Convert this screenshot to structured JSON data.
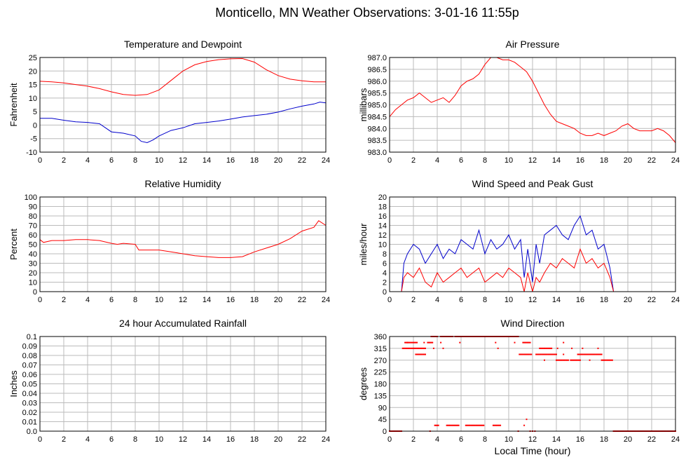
{
  "title": "Monticello, MN Weather Observations: 3-01-16 11:55p",
  "bottom_xlabel": "Local Time (hour)",
  "colors": {
    "red": "#ff0000",
    "blue": "#0000cc",
    "grid": "#bbbbbb",
    "frame": "#000000"
  },
  "chart_data": [
    {
      "id": "temp",
      "type": "line",
      "title": "Temperature and Dewpoint",
      "ylabel": "Fahrenheit",
      "xlim": [
        0,
        24
      ],
      "ylim": [
        -10,
        25
      ],
      "yticks": [
        "-10",
        "-5",
        "0",
        "5",
        "10",
        "15",
        "20",
        "25"
      ],
      "xticks": [
        "0",
        "2",
        "4",
        "6",
        "8",
        "10",
        "12",
        "14",
        "16",
        "18",
        "20",
        "22",
        "24"
      ],
      "series": [
        {
          "color": "#ff0000",
          "x": [
            0,
            1,
            2,
            3,
            4,
            5,
            6,
            7,
            8,
            9,
            10,
            11,
            12,
            13,
            14,
            15,
            16,
            17,
            18,
            19,
            20,
            21,
            22,
            23,
            24
          ],
          "y": [
            16.2,
            16,
            15.6,
            15,
            14.4,
            13.5,
            12.3,
            11.3,
            11,
            11.3,
            13,
            16.5,
            20,
            22.3,
            23.5,
            24.2,
            24.5,
            24.6,
            23.3,
            20.5,
            18.3,
            17,
            16.4,
            16,
            16
          ]
        },
        {
          "color": "#0000cc",
          "x": [
            0,
            1,
            2,
            3,
            4,
            5,
            6,
            7,
            8,
            8.5,
            9,
            9.5,
            10,
            11,
            12,
            13,
            14,
            15,
            16,
            17,
            18,
            19,
            20,
            21,
            22,
            23,
            23.5,
            24
          ],
          "y": [
            2.5,
            2.5,
            1.8,
            1.2,
            1,
            0.5,
            -2.5,
            -3,
            -4,
            -6,
            -6.5,
            -5.5,
            -4,
            -2,
            -1,
            0.5,
            1,
            1.5,
            2.2,
            3,
            3.5,
            4,
            4.8,
            6,
            7,
            7.8,
            8.5,
            8.2
          ]
        }
      ]
    },
    {
      "id": "press",
      "type": "line",
      "title": "Air Pressure",
      "ylabel": "millibars",
      "xlim": [
        0,
        24
      ],
      "ylim": [
        983.0,
        987.0
      ],
      "yticks": [
        "983.0",
        "983.5",
        "984.0",
        "984.5",
        "985.0",
        "985.5",
        "986.0",
        "986.5",
        "987.0"
      ],
      "xticks": [
        "0",
        "2",
        "4",
        "6",
        "8",
        "10",
        "12",
        "14",
        "16",
        "18",
        "20",
        "22",
        "24"
      ],
      "series": [
        {
          "color": "#ff0000",
          "x": [
            0,
            0.5,
            1,
            1.5,
            2,
            2.5,
            3,
            3.5,
            4,
            4.5,
            5,
            5.5,
            6,
            6.5,
            7,
            7.5,
            8,
            8.5,
            9,
            9.5,
            10,
            10.5,
            11,
            11.5,
            12,
            12.5,
            13,
            13.5,
            14,
            14.5,
            15,
            15.5,
            16,
            16.5,
            17,
            17.5,
            18,
            18.5,
            19,
            19.5,
            20,
            20.5,
            21,
            21.5,
            22,
            22.5,
            23,
            23.5,
            24
          ],
          "y": [
            984.5,
            984.8,
            985.0,
            985.2,
            985.3,
            985.5,
            985.3,
            985.1,
            985.2,
            985.3,
            985.1,
            985.4,
            985.8,
            986.0,
            986.1,
            986.3,
            986.7,
            987.0,
            987.0,
            986.9,
            986.9,
            986.8,
            986.6,
            986.4,
            986.0,
            985.5,
            985.0,
            984.6,
            984.3,
            984.2,
            984.1,
            984.0,
            983.8,
            983.7,
            983.7,
            983.8,
            983.7,
            983.8,
            983.9,
            984.1,
            984.2,
            984.0,
            983.9,
            983.9,
            983.9,
            984.0,
            983.9,
            983.7,
            983.4
          ]
        }
      ]
    },
    {
      "id": "rh",
      "type": "line",
      "title": "Relative Humidity",
      "ylabel": "Percent",
      "xlim": [
        0,
        24
      ],
      "ylim": [
        0,
        100
      ],
      "yticks": [
        "0",
        "10",
        "20",
        "30",
        "40",
        "50",
        "60",
        "70",
        "80",
        "90",
        "100"
      ],
      "xticks": [
        "0",
        "2",
        "4",
        "6",
        "8",
        "10",
        "12",
        "14",
        "16",
        "18",
        "20",
        "22",
        "24"
      ],
      "series": [
        {
          "color": "#ff0000",
          "x": [
            0,
            0.3,
            1,
            2,
            3,
            4,
            5,
            6,
            6.5,
            7,
            8,
            8.3,
            9,
            10,
            11,
            12,
            13,
            14,
            15,
            16,
            17,
            18,
            19,
            20,
            21,
            22,
            23,
            23.4,
            24
          ],
          "y": [
            55,
            52,
            54,
            54,
            55,
            55,
            54,
            51,
            50,
            51,
            50,
            44,
            44,
            44,
            42,
            40,
            38,
            37,
            36,
            36,
            37,
            42,
            46,
            50,
            56,
            64,
            68,
            75,
            70
          ]
        }
      ]
    },
    {
      "id": "wind",
      "type": "line",
      "title": "Wind Speed and Peak Gust",
      "ylabel": "miles/hour",
      "xlim": [
        0,
        24
      ],
      "ylim": [
        0,
        20
      ],
      "yticks": [
        "0",
        "2",
        "4",
        "6",
        "8",
        "10",
        "12",
        "14",
        "16",
        "18",
        "20"
      ],
      "xticks": [
        "0",
        "2",
        "4",
        "6",
        "8",
        "10",
        "12",
        "14",
        "16",
        "18",
        "20",
        "22",
        "24"
      ],
      "series": [
        {
          "color": "#0000cc",
          "x": [
            0,
            1,
            1.2,
            1.5,
            2,
            2.5,
            3,
            3.5,
            4,
            4.5,
            5,
            5.5,
            6,
            6.5,
            7,
            7.5,
            8,
            8.5,
            9,
            9.5,
            10,
            10.5,
            11,
            11.3,
            11.6,
            12,
            12.3,
            12.6,
            13,
            13.5,
            14,
            14.5,
            15,
            15.5,
            16,
            16.5,
            17,
            17.5,
            18,
            18.5,
            18.8,
            19,
            24
          ],
          "y": [
            0,
            0,
            6,
            8,
            10,
            9,
            6,
            8,
            10,
            7,
            9,
            8,
            11,
            10,
            9,
            13,
            8,
            11,
            9,
            10,
            12,
            9,
            11,
            3,
            9,
            2,
            10,
            6,
            12,
            13,
            14,
            12,
            11,
            14,
            16,
            12,
            13,
            9,
            10,
            5,
            0,
            0,
            0
          ]
        },
        {
          "color": "#ff0000",
          "x": [
            0,
            1,
            1.2,
            1.5,
            2,
            2.5,
            3,
            3.5,
            4,
            4.5,
            5,
            5.5,
            6,
            6.5,
            7,
            7.5,
            8,
            8.5,
            9,
            9.5,
            10,
            10.5,
            11,
            11.3,
            11.6,
            12,
            12.3,
            12.6,
            13,
            13.5,
            14,
            14.5,
            15,
            15.5,
            16,
            16.5,
            17,
            17.5,
            18,
            18.5,
            18.8,
            19,
            24
          ],
          "y": [
            0,
            0,
            3,
            4,
            3,
            5,
            2,
            1,
            4,
            2,
            3,
            4,
            5,
            3,
            4,
            5,
            2,
            3,
            4,
            3,
            5,
            4,
            3,
            0,
            4,
            0,
            3,
            2,
            4,
            6,
            5,
            7,
            6,
            5,
            9,
            6,
            7,
            5,
            6,
            3,
            0,
            0,
            0
          ]
        }
      ]
    },
    {
      "id": "rain",
      "type": "line",
      "title": "24 hour Accumulated Rainfall",
      "ylabel": "Inches",
      "xlim": [
        0,
        24
      ],
      "ylim": [
        0,
        0.1
      ],
      "yticks": [
        "0.0",
        "0.01",
        "0.02",
        "0.03",
        "0.04",
        "0.05",
        "0.06",
        "0.07",
        "0.08",
        "0.09",
        "0.1"
      ],
      "xticks": [
        "0",
        "2",
        "4",
        "6",
        "8",
        "10",
        "12",
        "14",
        "16",
        "18",
        "20",
        "22",
        "24"
      ],
      "series": [
        {
          "color": "#ff0000",
          "x": [
            0,
            24
          ],
          "y": [
            0,
            0
          ]
        }
      ]
    },
    {
      "id": "dir",
      "type": "scatter",
      "title": "Wind Direction",
      "ylabel": "degrees",
      "xlim": [
        0,
        24
      ],
      "ylim": [
        0,
        360
      ],
      "yticks": [
        "0",
        "45",
        "90",
        "135",
        "180",
        "225",
        "270",
        "315",
        "360"
      ],
      "xticks": [
        "0",
        "2",
        "4",
        "6",
        "8",
        "10",
        "12",
        "14",
        "16",
        "18",
        "20",
        "22",
        "24"
      ],
      "series": [
        {
          "color": "#ff0000",
          "segments": [
            {
              "x0": 0.0,
              "x1": 1.0,
              "y": 0
            },
            {
              "x0": 1.1,
              "x1": 3.0,
              "y": 315
            },
            {
              "x0": 1.3,
              "x1": 2.3,
              "y": 337
            },
            {
              "x0": 2.2,
              "x1": 3.0,
              "y": 292
            },
            {
              "x0": 3.2,
              "x1": 3.6,
              "y": 337
            },
            {
              "x0": 3.5,
              "x1": 4.0,
              "y": 360
            },
            {
              "x0": 4.3,
              "x1": 5.3,
              "y": 360
            },
            {
              "x0": 5.5,
              "x1": 8.2,
              "y": 360
            },
            {
              "x0": 8.3,
              "x1": 10.8,
              "y": 360
            },
            {
              "x0": 3.8,
              "x1": 4.1,
              "y": 22
            },
            {
              "x0": 4.8,
              "x1": 5.8,
              "y": 22
            },
            {
              "x0": 6.4,
              "x1": 7.9,
              "y": 22
            },
            {
              "x0": 8.7,
              "x1": 9.3,
              "y": 22
            },
            {
              "x0": 10.9,
              "x1": 11.9,
              "y": 292
            },
            {
              "x0": 11.2,
              "x1": 11.8,
              "y": 337
            },
            {
              "x0": 12.3,
              "x1": 14.0,
              "y": 292
            },
            {
              "x0": 12.6,
              "x1": 13.6,
              "y": 315
            },
            {
              "x0": 14.0,
              "x1": 15.0,
              "y": 270
            },
            {
              "x0": 15.2,
              "x1": 16.0,
              "y": 270
            },
            {
              "x0": 15.8,
              "x1": 17.8,
              "y": 292
            },
            {
              "x0": 17.8,
              "x1": 18.7,
              "y": 270
            },
            {
              "x0": 18.8,
              "x1": 24.0,
              "y": 0
            }
          ],
          "points": [
            {
              "x": 1.5,
              "y": 337
            },
            {
              "x": 2.9,
              "y": 337
            },
            {
              "x": 3.7,
              "y": 315
            },
            {
              "x": 4.3,
              "y": 337
            },
            {
              "x": 4.5,
              "y": 315
            },
            {
              "x": 5.9,
              "y": 337
            },
            {
              "x": 8.9,
              "y": 337
            },
            {
              "x": 9.1,
              "y": 315
            },
            {
              "x": 3.4,
              "y": 0
            },
            {
              "x": 10.5,
              "y": 337
            },
            {
              "x": 10.8,
              "y": 0
            },
            {
              "x": 11.3,
              "y": 22
            },
            {
              "x": 11.5,
              "y": 45
            },
            {
              "x": 11.8,
              "y": 0
            },
            {
              "x": 12.0,
              "y": 0
            },
            {
              "x": 12.2,
              "y": 0
            },
            {
              "x": 14.1,
              "y": 315
            },
            {
              "x": 14.6,
              "y": 337
            },
            {
              "x": 15.3,
              "y": 315
            },
            {
              "x": 16.2,
              "y": 315
            },
            {
              "x": 16.8,
              "y": 270
            },
            {
              "x": 17.5,
              "y": 315
            },
            {
              "x": 14.6,
              "y": 292
            },
            {
              "x": 13.0,
              "y": 270
            }
          ]
        }
      ]
    }
  ]
}
